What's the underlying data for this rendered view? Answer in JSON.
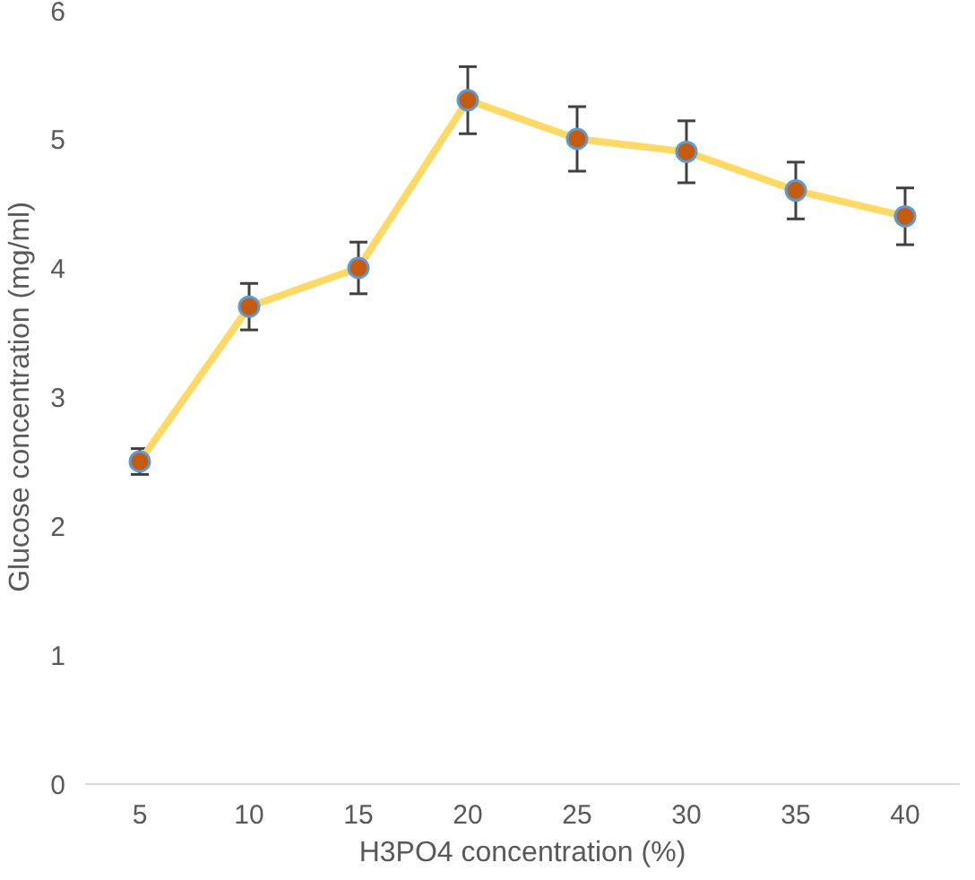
{
  "chart_data": {
    "type": "line",
    "xlabel": "H3PO4 concentration (%)",
    "ylabel": "Glucose concentration (mg/ml)",
    "categories": [
      "5",
      "10",
      "15",
      "20",
      "25",
      "30",
      "35",
      "40"
    ],
    "series": [
      {
        "color": "#ffd966",
        "values": [
          2.5,
          3.7,
          4.0,
          5.3,
          5.0,
          4.9,
          4.6,
          4.4
        ],
        "errors": [
          0.1,
          0.18,
          0.2,
          0.26,
          0.25,
          0.24,
          0.22,
          0.22
        ]
      }
    ],
    "ylim": [
      0,
      6
    ],
    "yticks": [
      0,
      1,
      2,
      3,
      4,
      5,
      6
    ],
    "marker": "circle",
    "line_style": "solid"
  }
}
